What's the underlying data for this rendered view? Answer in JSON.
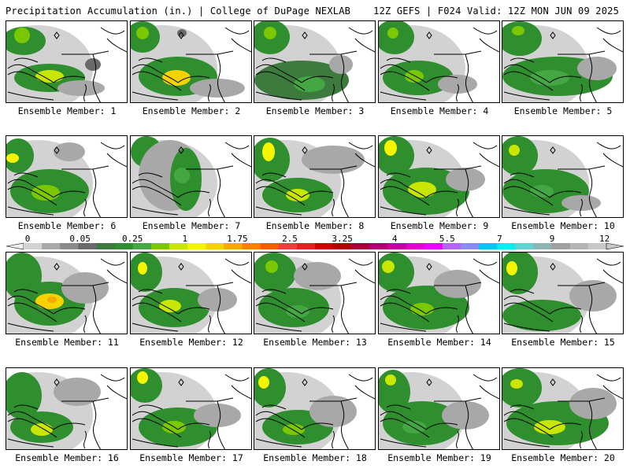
{
  "header": {
    "left": "Precipitation Accumulation (in.) | College of DuPage NEXLAB",
    "right": "12Z GEFS | F024 Valid: 12Z MON JUN 09 2025"
  },
  "colorbar": {
    "ticks": [
      "0",
      "0.05",
      "0.25",
      "1",
      "1.75",
      "2.5",
      "3.25",
      "4",
      "5.5",
      "7",
      "9",
      "12"
    ],
    "colors": [
      "#d2d2d2",
      "#a8a8a8",
      "#8a8a8a",
      "#6a6a6a",
      "#3d7a3d",
      "#2f8f2f",
      "#43a843",
      "#7cc800",
      "#c8e600",
      "#f5f500",
      "#f5d200",
      "#f5aa00",
      "#f58200",
      "#f55a00",
      "#f03c3c",
      "#e61e1e",
      "#d20000",
      "#b40000",
      "#a0003c",
      "#aa0078",
      "#c800a0",
      "#e600c8",
      "#f000f0",
      "#b464f0",
      "#8c8cf0",
      "#00c8f0",
      "#00f0f0",
      "#64d2d2",
      "#8cb4b4",
      "#a0a0a0",
      "#b4b4b4",
      "#c8c8c8"
    ]
  },
  "panels": [
    {
      "label": "Ensemble Member: 1",
      "blobs": [
        {
          "c": "#2f8f2f",
          "cx": 22,
          "cy": 25,
          "rx": 28,
          "ry": 18
        },
        {
          "c": "#7cc800",
          "cx": 20,
          "cy": 18,
          "rx": 10,
          "ry": 10
        },
        {
          "c": "#2f8f2f",
          "cx": 55,
          "cy": 72,
          "rx": 45,
          "ry": 18
        },
        {
          "c": "#c8e600",
          "cx": 55,
          "cy": 70,
          "rx": 18,
          "ry": 8
        },
        {
          "c": "#6a6a6a",
          "cx": 110,
          "cy": 55,
          "rx": 10,
          "ry": 8
        },
        {
          "c": "#a8a8a8",
          "cx": 95,
          "cy": 85,
          "rx": 30,
          "ry": 10
        }
      ]
    },
    {
      "label": "Ensemble Member: 2",
      "blobs": [
        {
          "c": "#2f8f2f",
          "cx": 15,
          "cy": 20,
          "rx": 22,
          "ry": 20
        },
        {
          "c": "#7cc800",
          "cx": 15,
          "cy": 15,
          "rx": 8,
          "ry": 8
        },
        {
          "c": "#2f8f2f",
          "cx": 60,
          "cy": 70,
          "rx": 50,
          "ry": 25
        },
        {
          "c": "#f5d200",
          "cx": 58,
          "cy": 72,
          "rx": 18,
          "ry": 10
        },
        {
          "c": "#6a6a6a",
          "cx": 65,
          "cy": 15,
          "rx": 6,
          "ry": 5
        },
        {
          "c": "#a8a8a8",
          "cx": 110,
          "cy": 85,
          "rx": 35,
          "ry": 12
        }
      ]
    },
    {
      "label": "Ensemble Member: 3",
      "blobs": [
        {
          "c": "#2f8f2f",
          "cx": 20,
          "cy": 20,
          "rx": 25,
          "ry": 22
        },
        {
          "c": "#7cc800",
          "cx": 20,
          "cy": 15,
          "rx": 8,
          "ry": 8
        },
        {
          "c": "#3d7a3d",
          "cx": 60,
          "cy": 75,
          "rx": 60,
          "ry": 25
        },
        {
          "c": "#43a843",
          "cx": 70,
          "cy": 80,
          "rx": 20,
          "ry": 10
        },
        {
          "c": "#a8a8a8",
          "cx": 110,
          "cy": 55,
          "rx": 15,
          "ry": 12
        }
      ]
    },
    {
      "label": "Ensemble Member: 4",
      "blobs": [
        {
          "c": "#2f8f2f",
          "cx": 20,
          "cy": 20,
          "rx": 25,
          "ry": 22
        },
        {
          "c": "#7cc800",
          "cx": 18,
          "cy": 15,
          "rx": 7,
          "ry": 7
        },
        {
          "c": "#2f8f2f",
          "cx": 50,
          "cy": 72,
          "rx": 45,
          "ry": 22
        },
        {
          "c": "#7cc800",
          "cx": 45,
          "cy": 70,
          "rx": 12,
          "ry": 8
        },
        {
          "c": "#a8a8a8",
          "cx": 100,
          "cy": 80,
          "rx": 25,
          "ry": 12
        }
      ]
    },
    {
      "label": "Ensemble Member: 5",
      "blobs": [
        {
          "c": "#2f8f2f",
          "cx": 22,
          "cy": 22,
          "rx": 28,
          "ry": 22
        },
        {
          "c": "#7cc800",
          "cx": 20,
          "cy": 12,
          "rx": 8,
          "ry": 6
        },
        {
          "c": "#2f8f2f",
          "cx": 70,
          "cy": 70,
          "rx": 70,
          "ry": 25
        },
        {
          "c": "#43a843",
          "cx": 60,
          "cy": 72,
          "rx": 25,
          "ry": 10
        },
        {
          "c": "#a8a8a8",
          "cx": 120,
          "cy": 60,
          "rx": 25,
          "ry": 15
        }
      ]
    },
    {
      "label": "Ensemble Member: 6",
      "blobs": [
        {
          "c": "#2f8f2f",
          "cx": 15,
          "cy": 25,
          "rx": 20,
          "ry": 22
        },
        {
          "c": "#f5f500",
          "cx": 8,
          "cy": 28,
          "rx": 8,
          "ry": 6
        },
        {
          "c": "#2f8f2f",
          "cx": 55,
          "cy": 70,
          "rx": 50,
          "ry": 28
        },
        {
          "c": "#7cc800",
          "cx": 50,
          "cy": 72,
          "rx": 18,
          "ry": 10
        },
        {
          "c": "#a8a8a8",
          "cx": 80,
          "cy": 20,
          "rx": 20,
          "ry": 12
        }
      ]
    },
    {
      "label": "Ensemble Member: 7",
      "blobs": [
        {
          "c": "#2f8f2f",
          "cx": 20,
          "cy": 20,
          "rx": 20,
          "ry": 20
        },
        {
          "c": "#a8a8a8",
          "cx": 50,
          "cy": 50,
          "rx": 40,
          "ry": 45
        },
        {
          "c": "#2f8f2f",
          "cx": 70,
          "cy": 55,
          "rx": 20,
          "ry": 40
        },
        {
          "c": "#43a843",
          "cx": 65,
          "cy": 50,
          "rx": 10,
          "ry": 10
        }
      ]
    },
    {
      "label": "Ensemble Member: 8",
      "blobs": [
        {
          "c": "#2f8f2f",
          "cx": 20,
          "cy": 30,
          "rx": 25,
          "ry": 28
        },
        {
          "c": "#f5f500",
          "cx": 18,
          "cy": 20,
          "rx": 8,
          "ry": 12
        },
        {
          "c": "#2f8f2f",
          "cx": 55,
          "cy": 75,
          "rx": 45,
          "ry": 22
        },
        {
          "c": "#c8e600",
          "cx": 55,
          "cy": 75,
          "rx": 15,
          "ry": 8
        },
        {
          "c": "#a8a8a8",
          "cx": 100,
          "cy": 30,
          "rx": 40,
          "ry": 18
        }
      ]
    },
    {
      "label": "Ensemble Member: 9",
      "blobs": [
        {
          "c": "#2f8f2f",
          "cx": 20,
          "cy": 25,
          "rx": 25,
          "ry": 25
        },
        {
          "c": "#f5f500",
          "cx": 15,
          "cy": 15,
          "rx": 8,
          "ry": 10
        },
        {
          "c": "#2f8f2f",
          "cx": 60,
          "cy": 70,
          "rx": 55,
          "ry": 30
        },
        {
          "c": "#c8e600",
          "cx": 55,
          "cy": 68,
          "rx": 18,
          "ry": 10
        },
        {
          "c": "#a8a8a8",
          "cx": 110,
          "cy": 55,
          "rx": 25,
          "ry": 15
        }
      ]
    },
    {
      "label": "Ensemble Member: 10",
      "blobs": [
        {
          "c": "#2f8f2f",
          "cx": 20,
          "cy": 25,
          "rx": 25,
          "ry": 25
        },
        {
          "c": "#c8e600",
          "cx": 15,
          "cy": 18,
          "rx": 7,
          "ry": 7
        },
        {
          "c": "#2f8f2f",
          "cx": 55,
          "cy": 70,
          "rx": 55,
          "ry": 28
        },
        {
          "c": "#43a843",
          "cx": 50,
          "cy": 70,
          "rx": 15,
          "ry": 8
        },
        {
          "c": "#a8a8a8",
          "cx": 100,
          "cy": 85,
          "rx": 25,
          "ry": 10
        }
      ]
    },
    {
      "label": "Ensemble Member: 11",
      "blobs": [
        {
          "c": "#2f8f2f",
          "cx": 20,
          "cy": 30,
          "rx": 25,
          "ry": 30
        },
        {
          "c": "#2f8f2f",
          "cx": 55,
          "cy": 65,
          "rx": 45,
          "ry": 28
        },
        {
          "c": "#f5d200",
          "cx": 55,
          "cy": 62,
          "rx": 18,
          "ry": 10
        },
        {
          "c": "#f5aa00",
          "cx": 58,
          "cy": 60,
          "rx": 6,
          "ry": 4
        },
        {
          "c": "#a8a8a8",
          "cx": 100,
          "cy": 45,
          "rx": 30,
          "ry": 20
        }
      ]
    },
    {
      "label": "Ensemble Member: 12",
      "blobs": [
        {
          "c": "#2f8f2f",
          "cx": 18,
          "cy": 25,
          "rx": 22,
          "ry": 25
        },
        {
          "c": "#f5f500",
          "cx": 15,
          "cy": 20,
          "rx": 6,
          "ry": 8
        },
        {
          "c": "#2f8f2f",
          "cx": 55,
          "cy": 70,
          "rx": 45,
          "ry": 25
        },
        {
          "c": "#c8e600",
          "cx": 50,
          "cy": 68,
          "rx": 14,
          "ry": 8
        },
        {
          "c": "#a8a8a8",
          "cx": 110,
          "cy": 60,
          "rx": 25,
          "ry": 15
        }
      ]
    },
    {
      "label": "Ensemble Member: 13",
      "blobs": [
        {
          "c": "#2f8f2f",
          "cx": 25,
          "cy": 25,
          "rx": 28,
          "ry": 25
        },
        {
          "c": "#7cc800",
          "cx": 22,
          "cy": 18,
          "rx": 8,
          "ry": 8
        },
        {
          "c": "#2f8f2f",
          "cx": 50,
          "cy": 70,
          "rx": 45,
          "ry": 25
        },
        {
          "c": "#43a843",
          "cx": 55,
          "cy": 75,
          "rx": 15,
          "ry": 8
        },
        {
          "c": "#a8a8a8",
          "cx": 80,
          "cy": 30,
          "rx": 30,
          "ry": 18
        }
      ]
    },
    {
      "label": "Ensemble Member: 14",
      "blobs": [
        {
          "c": "#2f8f2f",
          "cx": 20,
          "cy": 25,
          "rx": 25,
          "ry": 25
        },
        {
          "c": "#c8e600",
          "cx": 12,
          "cy": 18,
          "rx": 8,
          "ry": 8
        },
        {
          "c": "#2f8f2f",
          "cx": 60,
          "cy": 70,
          "rx": 55,
          "ry": 28
        },
        {
          "c": "#7cc800",
          "cx": 55,
          "cy": 72,
          "rx": 15,
          "ry": 8
        },
        {
          "c": "#a8a8a8",
          "cx": 100,
          "cy": 40,
          "rx": 30,
          "ry": 18
        }
      ]
    },
    {
      "label": "Ensemble Member: 15",
      "blobs": [
        {
          "c": "#2f8f2f",
          "cx": 20,
          "cy": 25,
          "rx": 25,
          "ry": 28
        },
        {
          "c": "#f5f500",
          "cx": 12,
          "cy": 20,
          "rx": 7,
          "ry": 9
        },
        {
          "c": "#2f8f2f",
          "cx": 50,
          "cy": 80,
          "rx": 50,
          "ry": 20
        },
        {
          "c": "#a8a8a8",
          "cx": 115,
          "cy": 55,
          "rx": 30,
          "ry": 20
        }
      ]
    },
    {
      "label": "Ensemble Member: 16",
      "blobs": [
        {
          "c": "#2f8f2f",
          "cx": 20,
          "cy": 35,
          "rx": 25,
          "ry": 30
        },
        {
          "c": "#2f8f2f",
          "cx": 45,
          "cy": 75,
          "rx": 40,
          "ry": 20
        },
        {
          "c": "#c8e600",
          "cx": 45,
          "cy": 78,
          "rx": 14,
          "ry": 8
        },
        {
          "c": "#a8a8a8",
          "cx": 90,
          "cy": 30,
          "rx": 30,
          "ry": 18
        }
      ]
    },
    {
      "label": "Ensemble Member: 17",
      "blobs": [
        {
          "c": "#2f8f2f",
          "cx": 18,
          "cy": 22,
          "rx": 22,
          "ry": 22
        },
        {
          "c": "#f5f500",
          "cx": 15,
          "cy": 12,
          "rx": 7,
          "ry": 8
        },
        {
          "c": "#2f8f2f",
          "cx": 60,
          "cy": 75,
          "rx": 50,
          "ry": 25
        },
        {
          "c": "#7cc800",
          "cx": 55,
          "cy": 75,
          "rx": 15,
          "ry": 8
        },
        {
          "c": "#a8a8a8",
          "cx": 110,
          "cy": 60,
          "rx": 30,
          "ry": 15
        }
      ]
    },
    {
      "label": "Ensemble Member: 18",
      "blobs": [
        {
          "c": "#2f8f2f",
          "cx": 18,
          "cy": 25,
          "rx": 22,
          "ry": 25
        },
        {
          "c": "#f5f500",
          "cx": 12,
          "cy": 18,
          "rx": 7,
          "ry": 8
        },
        {
          "c": "#2f8f2f",
          "cx": 55,
          "cy": 75,
          "rx": 45,
          "ry": 22
        },
        {
          "c": "#7cc800",
          "cx": 50,
          "cy": 78,
          "rx": 14,
          "ry": 7
        },
        {
          "c": "#a8a8a8",
          "cx": 100,
          "cy": 55,
          "rx": 30,
          "ry": 20
        }
      ]
    },
    {
      "label": "Ensemble Member: 19",
      "blobs": [
        {
          "c": "#2f8f2f",
          "cx": 18,
          "cy": 30,
          "rx": 22,
          "ry": 28
        },
        {
          "c": "#c8e600",
          "cx": 15,
          "cy": 15,
          "rx": 7,
          "ry": 7
        },
        {
          "c": "#2f8f2f",
          "cx": 55,
          "cy": 70,
          "rx": 50,
          "ry": 28
        },
        {
          "c": "#43a843",
          "cx": 45,
          "cy": 75,
          "rx": 15,
          "ry": 8
        },
        {
          "c": "#a8a8a8",
          "cx": 110,
          "cy": 60,
          "rx": 30,
          "ry": 18
        }
      ]
    },
    {
      "label": "Ensemble Member: 20",
      "blobs": [
        {
          "c": "#2f8f2f",
          "cx": 22,
          "cy": 25,
          "rx": 28,
          "ry": 25
        },
        {
          "c": "#c8e600",
          "cx": 18,
          "cy": 20,
          "rx": 8,
          "ry": 6
        },
        {
          "c": "#2f8f2f",
          "cx": 70,
          "cy": 70,
          "rx": 65,
          "ry": 28
        },
        {
          "c": "#c8e600",
          "cx": 60,
          "cy": 75,
          "rx": 20,
          "ry": 9
        },
        {
          "c": "#a8a8a8",
          "cx": 115,
          "cy": 45,
          "rx": 30,
          "ry": 20
        }
      ]
    }
  ]
}
